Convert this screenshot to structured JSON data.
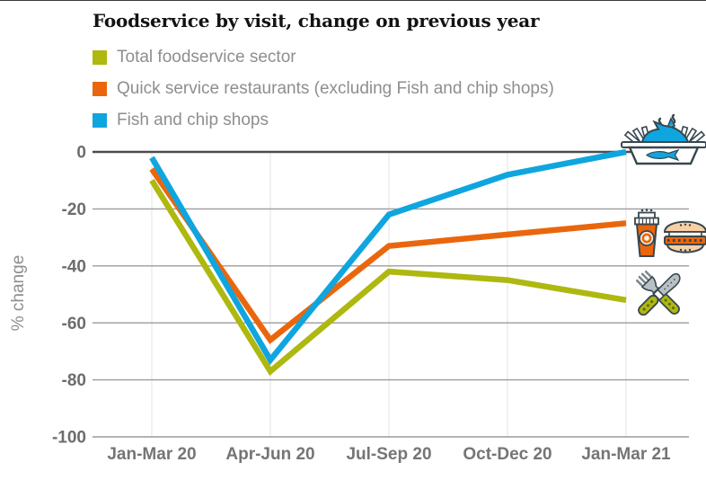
{
  "chart_data": {
    "type": "line",
    "title": "Foodservice by visit, change on previous year",
    "ylabel": "% change",
    "ylim": [
      -100,
      0
    ],
    "y_ticks": [
      "0",
      "-20",
      "-40",
      "-60",
      "-80",
      "-100"
    ],
    "categories": [
      "Jan-Mar 20",
      "Apr-Jun 20",
      "Jul-Sep 20",
      "Oct-Dec 20",
      "Jan-Mar 21"
    ],
    "series": [
      {
        "id": "total",
        "name": "Total foodservice sector",
        "color": "#aeb80f",
        "values": [
          -10,
          -77,
          -42,
          -45,
          -52
        ]
      },
      {
        "id": "qsr",
        "name": "Quick service restaurants (excluding Fish and chip shops)",
        "color": "#ea660d",
        "values": [
          -6,
          -66,
          -33,
          -29,
          -25
        ]
      },
      {
        "id": "fish",
        "name": "Fish and chip shops",
        "color": "#0fa5df",
        "values": [
          -2,
          -73,
          -22,
          -8,
          0
        ]
      }
    ],
    "grid": true,
    "legend_position": "top-left",
    "annotations": [
      {
        "icon": "fish-and-chips-tray-icon",
        "series": "fish"
      },
      {
        "icon": "drink-and-burger-icon",
        "series": "qsr"
      },
      {
        "icon": "fork-and-knife-icon",
        "series": "total"
      }
    ],
    "annotation_colors": {
      "outline": "#37474f",
      "steel_gray": "#b9c0c3",
      "bun_cream": "#f8cfa5",
      "cream": "#faf1e4",
      "handle_dot_green": "#5d650d"
    }
  }
}
